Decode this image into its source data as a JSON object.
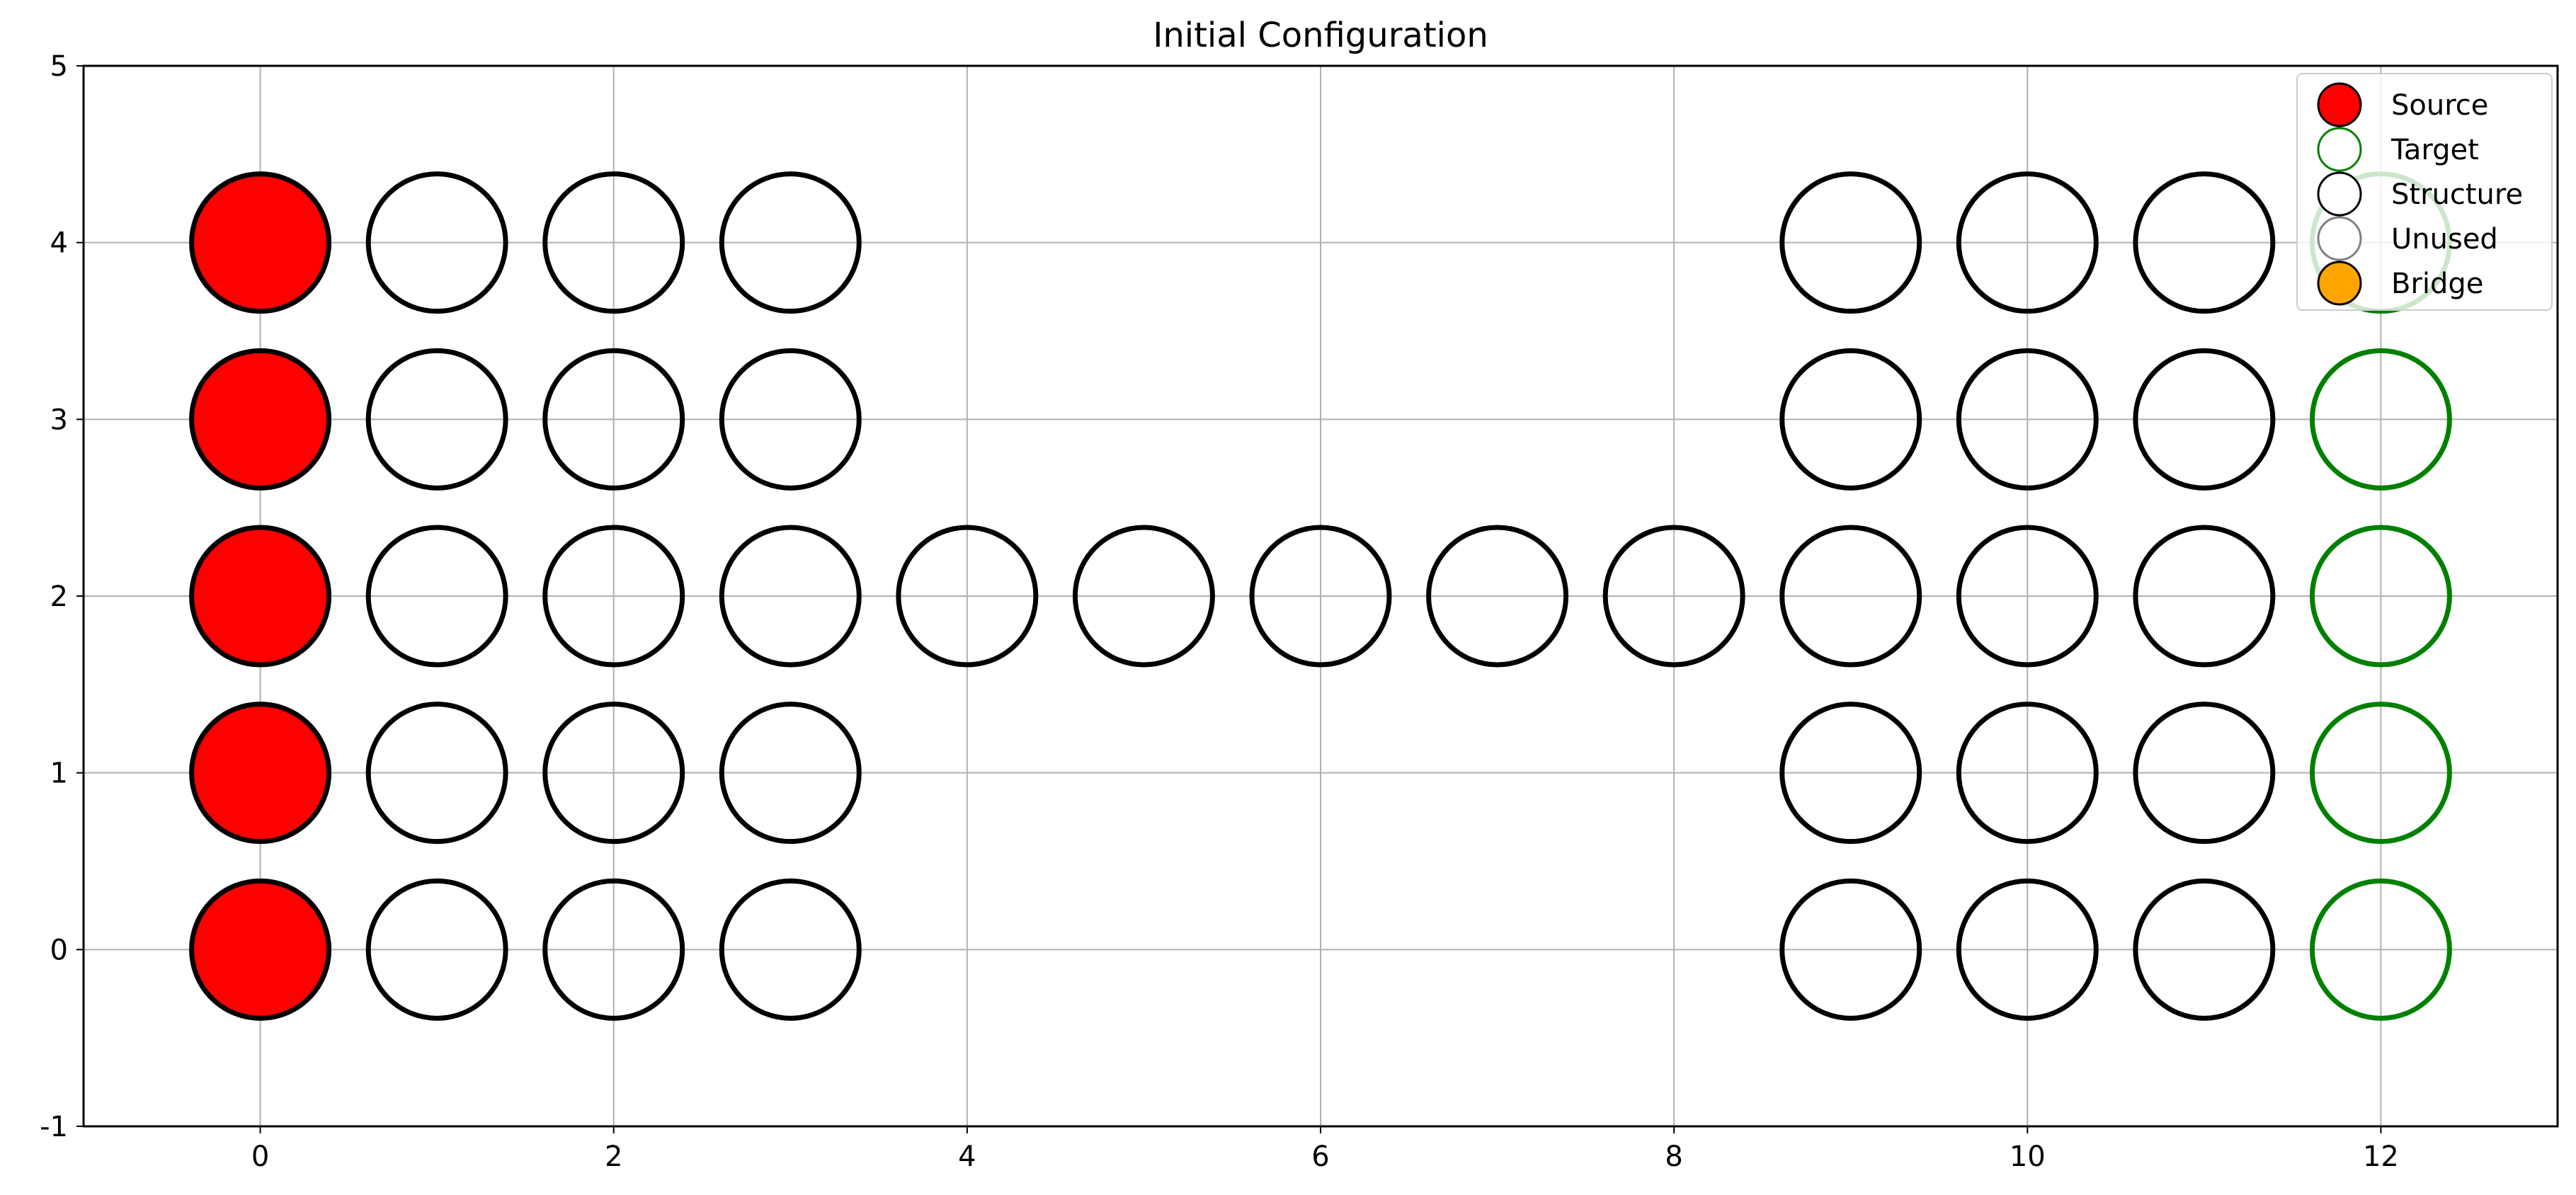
{
  "chart_data": {
    "type": "scatter",
    "title": "Initial Configuration",
    "xlabel": "",
    "ylabel": "",
    "xlim": [
      -1,
      13
    ],
    "ylim": [
      -1,
      5
    ],
    "x_ticks": [
      0,
      2,
      4,
      6,
      8,
      10,
      12
    ],
    "y_ticks": [
      -1,
      0,
      1,
      2,
      3,
      4,
      5
    ],
    "grid": true,
    "legend_position": "top-right",
    "legend": [
      {
        "label": "Source",
        "fill": "#ff0000",
        "edge": "#000000"
      },
      {
        "label": "Target",
        "fill": "#ffffff",
        "edge": "#008000"
      },
      {
        "label": "Structure",
        "fill": "#ffffff",
        "edge": "#000000"
      },
      {
        "label": "Unused",
        "fill": "#ffffff",
        "edge": "#808080"
      },
      {
        "label": "Bridge",
        "fill": "#ffa500",
        "edge": "#000000"
      }
    ],
    "series": [
      {
        "name": "Source",
        "fill": "#ff0000",
        "edge": "#000000",
        "points": [
          [
            0,
            0
          ],
          [
            0,
            1
          ],
          [
            0,
            2
          ],
          [
            0,
            3
          ],
          [
            0,
            4
          ]
        ]
      },
      {
        "name": "Target",
        "fill": "none",
        "edge": "#008000",
        "points": [
          [
            12,
            0
          ],
          [
            12,
            1
          ],
          [
            12,
            2
          ],
          [
            12,
            3
          ],
          [
            12,
            4
          ]
        ]
      },
      {
        "name": "Structure",
        "fill": "none",
        "edge": "#000000",
        "points": [
          [
            1,
            0
          ],
          [
            1,
            1
          ],
          [
            1,
            2
          ],
          [
            1,
            3
          ],
          [
            1,
            4
          ],
          [
            2,
            0
          ],
          [
            2,
            1
          ],
          [
            2,
            2
          ],
          [
            2,
            3
          ],
          [
            2,
            4
          ],
          [
            3,
            0
          ],
          [
            3,
            1
          ],
          [
            3,
            2
          ],
          [
            3,
            3
          ],
          [
            3,
            4
          ],
          [
            4,
            2
          ],
          [
            5,
            2
          ],
          [
            6,
            2
          ],
          [
            7,
            2
          ],
          [
            8,
            2
          ],
          [
            9,
            0
          ],
          [
            9,
            1
          ],
          [
            9,
            2
          ],
          [
            9,
            3
          ],
          [
            9,
            4
          ],
          [
            10,
            0
          ],
          [
            10,
            1
          ],
          [
            10,
            2
          ],
          [
            10,
            3
          ],
          [
            10,
            4
          ],
          [
            11,
            0
          ],
          [
            11,
            1
          ],
          [
            11,
            2
          ],
          [
            11,
            3
          ],
          [
            11,
            4
          ]
        ]
      },
      {
        "name": "Unused",
        "fill": "none",
        "edge": "#808080",
        "points": []
      },
      {
        "name": "Bridge",
        "fill": "#ffa500",
        "edge": "#000000",
        "points": []
      }
    ]
  }
}
